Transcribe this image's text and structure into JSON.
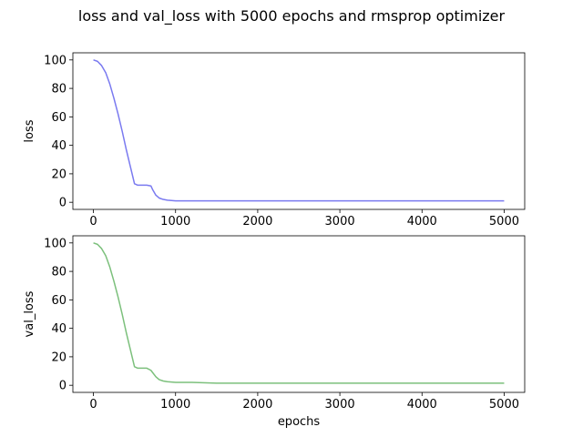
{
  "figure_title": "loss and val_loss with 5000 epochs and rmsprop optimizer",
  "chart_data": [
    {
      "type": "line",
      "title": "",
      "xlabel": "",
      "ylabel": "loss",
      "xlim": [
        -250,
        5250
      ],
      "ylim": [
        -5,
        105
      ],
      "xticks": [
        0,
        1000,
        2000,
        3000,
        4000,
        5000
      ],
      "yticks": [
        0,
        20,
        40,
        60,
        80,
        100
      ],
      "grid": false,
      "legend": "none",
      "series": [
        {
          "color": "#7a7af0",
          "x": [
            0,
            50,
            100,
            150,
            200,
            250,
            300,
            350,
            400,
            450,
            500,
            540,
            560,
            600,
            650,
            700,
            720,
            760,
            800,
            850,
            900,
            1000,
            1200,
            1500,
            2000,
            2500,
            3000,
            3500,
            4000,
            4500,
            5000
          ],
          "y": [
            100,
            99,
            96,
            91,
            83,
            73,
            62,
            50,
            37,
            25,
            13,
            12,
            12,
            12,
            12,
            11.5,
            9,
            5,
            3,
            2,
            1.5,
            1,
            1,
            1,
            1,
            1,
            1,
            1,
            1,
            1,
            1
          ]
        }
      ]
    },
    {
      "type": "line",
      "title": "",
      "xlabel": "epochs",
      "ylabel": "val_loss",
      "xlim": [
        -250,
        5250
      ],
      "ylim": [
        -5,
        105
      ],
      "xticks": [
        0,
        1000,
        2000,
        3000,
        4000,
        5000
      ],
      "yticks": [
        0,
        20,
        40,
        60,
        80,
        100
      ],
      "grid": false,
      "legend": "none",
      "series": [
        {
          "color": "#7cc07c",
          "x": [
            0,
            50,
            100,
            150,
            200,
            250,
            300,
            350,
            400,
            450,
            500,
            540,
            560,
            600,
            650,
            700,
            720,
            760,
            800,
            850,
            900,
            1000,
            1200,
            1500,
            2000,
            2500,
            3000,
            3500,
            4000,
            4500,
            5000
          ],
          "y": [
            100,
            99,
            96,
            91,
            83,
            73,
            62,
            50,
            37,
            25,
            13,
            12,
            12,
            12,
            12,
            10.5,
            9,
            6,
            4,
            3,
            2.5,
            2,
            2,
            1.5,
            1.5,
            1.5,
            1.5,
            1.5,
            1.5,
            1.5,
            1.5
          ]
        }
      ]
    }
  ]
}
